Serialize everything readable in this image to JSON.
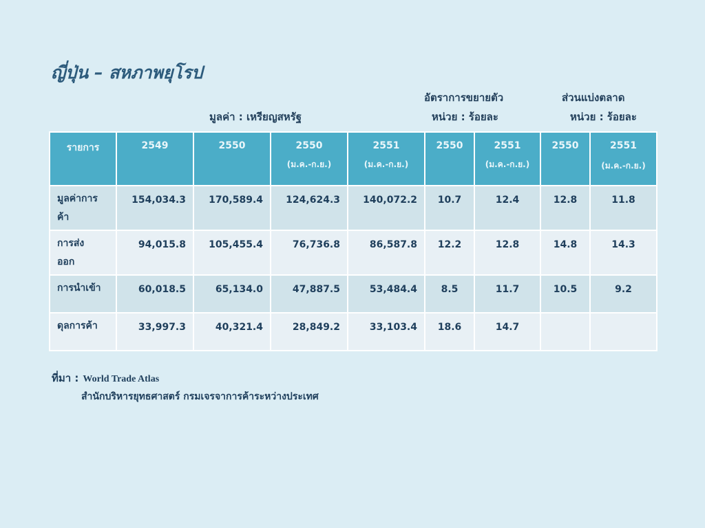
{
  "title": "ญี่ปุ่น – สหภาพยุโรป",
  "headers": {
    "growth_title": "อัตราการขยายตัว",
    "share_title": "ส่วนแบ่งตลาด",
    "value_unit": "มูลค่า : เหรียญสหรัฐ",
    "growth_unit": "หน่วย : ร้อยละ",
    "share_unit": "หน่วย : ร้อยละ"
  },
  "table": {
    "columns": [
      {
        "label": "รายการ",
        "sub": ""
      },
      {
        "label": "2549",
        "sub": ""
      },
      {
        "label": "2550",
        "sub": ""
      },
      {
        "label": "2550",
        "sub": "(ม.ค.-ก.ย.)"
      },
      {
        "label": "2551",
        "sub": "(ม.ค.-ก.ย.)"
      },
      {
        "label": "2550",
        "sub": ""
      },
      {
        "label": "2551",
        "sub": "(ม.ค.-ก.ย.)"
      },
      {
        "label": "2550",
        "sub": ""
      },
      {
        "label": "2551",
        "sub": "(ม.ค.-ก.ย.)"
      }
    ],
    "rows": [
      {
        "label": "มูลค่าการค้า",
        "values": [
          "154,034.3",
          "170,589.4",
          "124,624.3",
          "140,072.2",
          "10.7",
          "12.4",
          "12.8",
          "11.8"
        ]
      },
      {
        "label": "การส่งออก",
        "values": [
          "94,015.8",
          "105,455.4",
          "76,736.8",
          "86,587.8",
          "12.2",
          "12.8",
          "14.8",
          "14.3"
        ]
      },
      {
        "label": "การนำเข้า",
        "values": [
          "60,018.5",
          "65,134.0",
          "47,887.5",
          "53,484.4",
          "8.5",
          "11.7",
          "10.5",
          "9.2"
        ]
      },
      {
        "label": "ดุลการค้า",
        "values": [
          "33,997.3",
          "40,321.4",
          "28,849.2",
          "33,103.4",
          "18.6",
          "14.7",
          "",
          ""
        ]
      }
    ]
  },
  "source": {
    "label": "ที่มา :",
    "line1": "World Trade Atlas",
    "line2": "สำนักบริหารยุทธศาสตร์ กรมเจรจาการค้าระหว่างประเทศ"
  }
}
